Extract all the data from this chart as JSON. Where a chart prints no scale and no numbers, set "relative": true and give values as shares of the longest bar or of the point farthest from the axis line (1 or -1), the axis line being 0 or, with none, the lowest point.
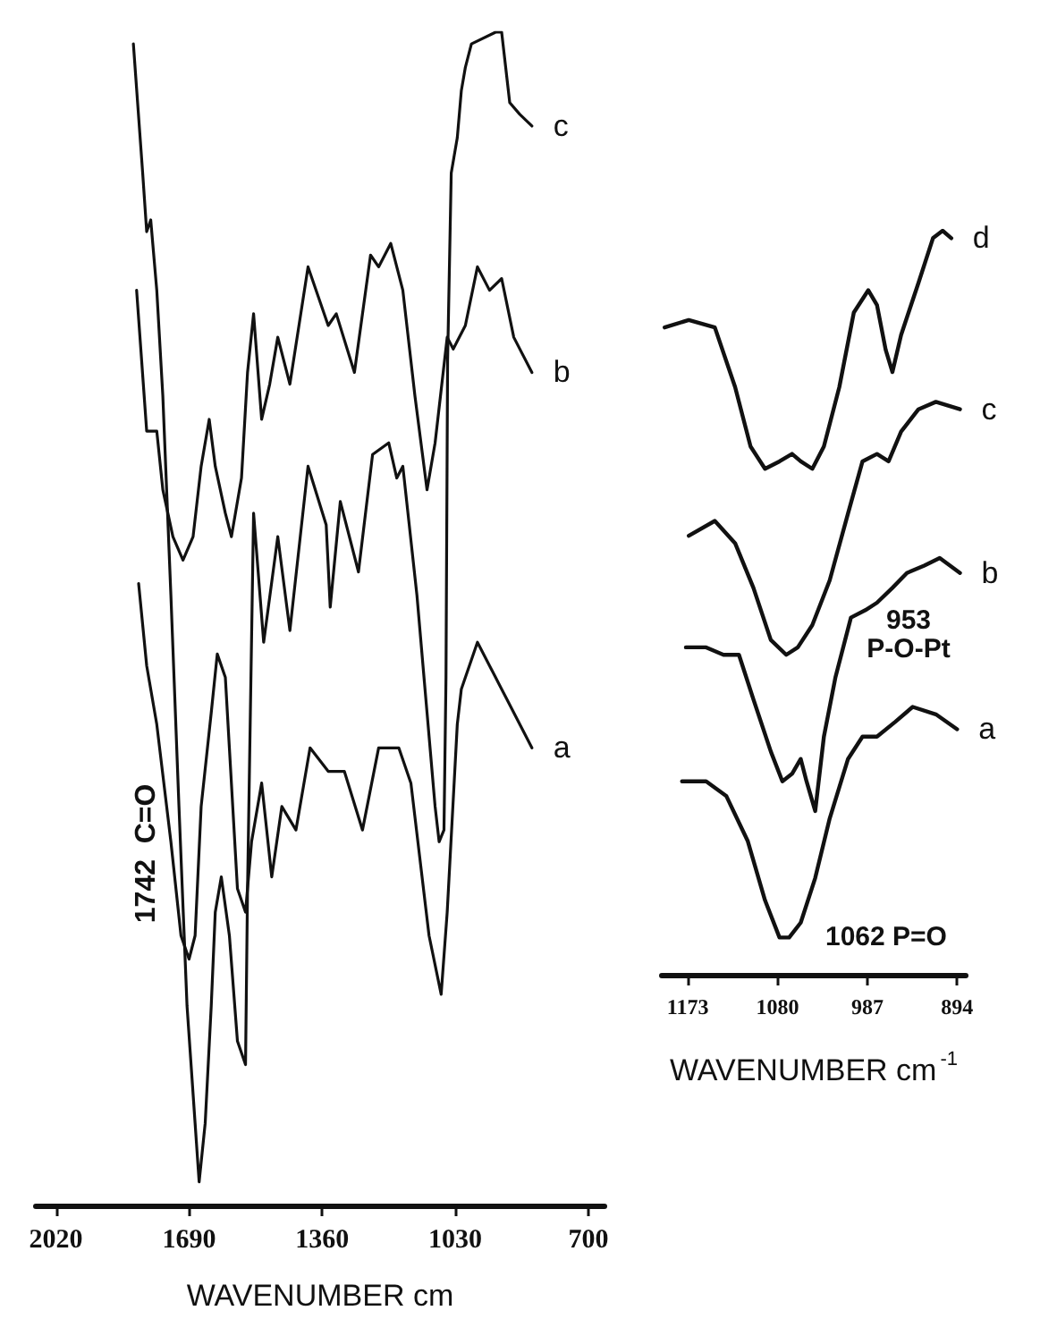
{
  "chart_data": [
    {
      "type": "line",
      "relative": true,
      "xlabel": "WAVENUMBER cm",
      "xlim": [
        2070,
        660
      ],
      "xticks": [
        2020,
        1690,
        1360,
        1030,
        700
      ],
      "legend": false,
      "grid": false,
      "tick_labels": "x",
      "annotations": [
        {
          "text": "1742  C=O",
          "x": 1742,
          "y": 0.3
        }
      ],
      "series": [
        {
          "name": "c",
          "color": "#111111",
          "x": [
            1828,
            1805,
            1795,
            1785,
            1770,
            1755,
            1735,
            1715,
            1695,
            1675,
            1665,
            1650,
            1635,
            1625,
            1610,
            1590,
            1570,
            1550,
            1545,
            1530,
            1505,
            1470,
            1440,
            1395,
            1350,
            1340,
            1315,
            1270,
            1235,
            1195,
            1175,
            1160,
            1125,
            1100,
            1080,
            1070,
            1058,
            1053,
            1049,
            1040,
            1025,
            1015,
            1005,
            990,
            930,
            915,
            895,
            870,
            840
          ],
          "values": [
            0.99,
            0.88,
            0.83,
            0.84,
            0.78,
            0.69,
            0.52,
            0.34,
            0.17,
            0.07,
            0.02,
            0.07,
            0.17,
            0.25,
            0.28,
            0.23,
            0.14,
            0.12,
            0.27,
            0.59,
            0.48,
            0.57,
            0.49,
            0.63,
            0.58,
            0.51,
            0.6,
            0.54,
            0.64,
            0.65,
            0.62,
            0.63,
            0.52,
            0.42,
            0.34,
            0.31,
            0.32,
            0.45,
            0.72,
            0.88,
            0.91,
            0.95,
            0.97,
            0.99,
            1.0,
            1.0,
            0.94,
            0.93,
            0.92
          ]
        },
        {
          "name": "b",
          "color": "#111111",
          "x": [
            1820,
            1795,
            1770,
            1755,
            1730,
            1705,
            1680,
            1660,
            1640,
            1625,
            1600,
            1585,
            1560,
            1545,
            1530,
            1510,
            1490,
            1470,
            1440,
            1395,
            1345,
            1325,
            1280,
            1240,
            1220,
            1190,
            1160,
            1130,
            1100,
            1080,
            1060,
            1050,
            1035,
            1005,
            975,
            945,
            915,
            885,
            840
          ],
          "values": [
            0.78,
            0.66,
            0.66,
            0.61,
            0.57,
            0.55,
            0.57,
            0.63,
            0.67,
            0.63,
            0.59,
            0.57,
            0.62,
            0.71,
            0.76,
            0.67,
            0.7,
            0.74,
            0.7,
            0.8,
            0.75,
            0.76,
            0.71,
            0.81,
            0.8,
            0.82,
            0.78,
            0.69,
            0.61,
            0.65,
            0.71,
            0.74,
            0.73,
            0.75,
            0.8,
            0.78,
            0.79,
            0.74,
            0.71
          ]
        },
        {
          "name": "a",
          "color": "#111111",
          "x": [
            1815,
            1795,
            1770,
            1735,
            1710,
            1690,
            1675,
            1660,
            1635,
            1620,
            1600,
            1590,
            1570,
            1550,
            1535,
            1510,
            1485,
            1460,
            1425,
            1390,
            1345,
            1305,
            1260,
            1220,
            1195,
            1170,
            1140,
            1095,
            1065,
            1050,
            1025,
            1015,
            975,
            945,
            930,
            900,
            870,
            840
          ],
          "values": [
            0.53,
            0.46,
            0.41,
            0.31,
            0.23,
            0.21,
            0.23,
            0.34,
            0.42,
            0.47,
            0.45,
            0.39,
            0.27,
            0.25,
            0.31,
            0.36,
            0.28,
            0.34,
            0.32,
            0.39,
            0.37,
            0.37,
            0.32,
            0.39,
            0.39,
            0.39,
            0.36,
            0.23,
            0.18,
            0.25,
            0.41,
            0.44,
            0.48,
            0.46,
            0.45,
            0.43,
            0.41,
            0.39
          ]
        }
      ]
    },
    {
      "type": "line",
      "relative": true,
      "xlabel": "WAVENUMBER cm$^{-1}$",
      "xlim": [
        1200,
        885
      ],
      "xticks": [
        1173,
        1080,
        987,
        894
      ],
      "legend": false,
      "grid": false,
      "tick_labels": "x",
      "annotations": [
        "953\nP-O-Pt",
        {
          "text": "1062 P=O",
          "x": 1062,
          "y": 0.05
        }
      ],
      "series": [
        {
          "name": "d",
          "color": "#111111",
          "x": [
            1197,
            1172,
            1145,
            1124,
            1108,
            1093,
            1078,
            1065,
            1056,
            1044,
            1032,
            1016,
            1001,
            986,
            977,
            968,
            961,
            952,
            934,
            919,
            909,
            900
          ],
          "values": [
            0.87,
            0.88,
            0.87,
            0.79,
            0.71,
            0.68,
            0.69,
            0.7,
            0.69,
            0.68,
            0.71,
            0.79,
            0.89,
            0.92,
            0.9,
            0.84,
            0.81,
            0.86,
            0.93,
            0.99,
            1.0,
            0.99
          ]
        },
        {
          "name": "c",
          "color": "#111111",
          "x": [
            1172,
            1145,
            1124,
            1105,
            1087,
            1071,
            1059,
            1044,
            1026,
            1007,
            992,
            977,
            965,
            952,
            934,
            916,
            891
          ],
          "values": [
            0.59,
            0.61,
            0.58,
            0.52,
            0.45,
            0.43,
            0.44,
            0.47,
            0.53,
            0.62,
            0.69,
            0.7,
            0.69,
            0.73,
            0.76,
            0.77,
            0.76
          ]
        },
        {
          "name": "b",
          "color": "#111111",
          "x": [
            1175,
            1154,
            1136,
            1120,
            1105,
            1087,
            1075,
            1065,
            1056,
            1050,
            1041,
            1032,
            1020,
            1004,
            989,
            977,
            961,
            946,
            928,
            912,
            891
          ],
          "values": [
            0.44,
            0.44,
            0.43,
            0.43,
            0.37,
            0.3,
            0.26,
            0.27,
            0.29,
            0.26,
            0.22,
            0.32,
            0.4,
            0.48,
            0.49,
            0.5,
            0.52,
            0.54,
            0.55,
            0.56,
            0.54
          ]
        },
        {
          "name": "a",
          "color": "#111111",
          "x": [
            1179,
            1154,
            1133,
            1111,
            1093,
            1078,
            1068,
            1056,
            1041,
            1026,
            1007,
            992,
            977,
            958,
            940,
            916,
            894
          ],
          "values": [
            0.26,
            0.26,
            0.24,
            0.18,
            0.1,
            0.05,
            0.05,
            0.07,
            0.13,
            0.21,
            0.29,
            0.32,
            0.32,
            0.34,
            0.36,
            0.35,
            0.33
          ]
        }
      ]
    }
  ]
}
